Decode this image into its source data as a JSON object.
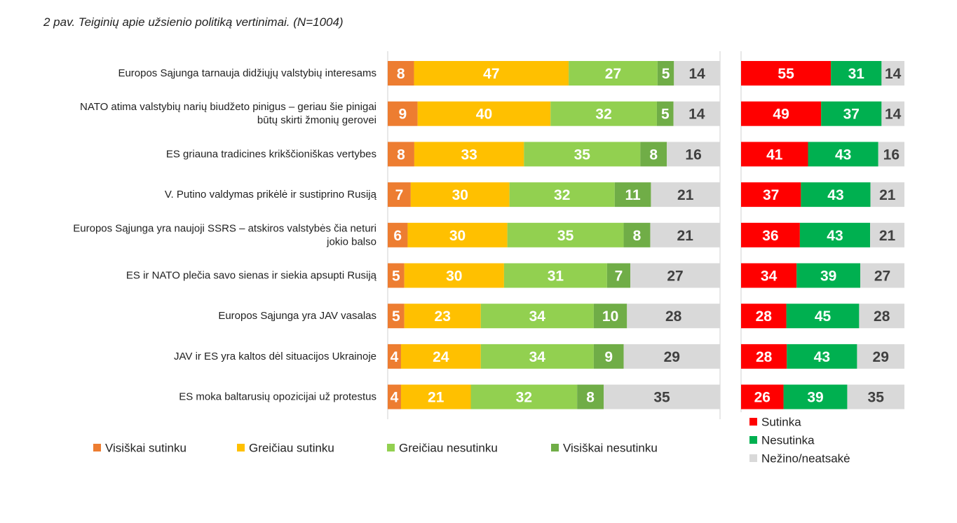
{
  "chart_data": [
    {
      "type": "bar",
      "stacked": true,
      "orientation": "horizontal",
      "title": "2 pav. Teiginių apie užsienio politiką vertinimai. (N=1004)",
      "categories": [
        "Europos Sąjunga tarnauja didžiųjų valstybių interesams",
        "NATO atima valstybių narių biudžeto pinigus – geriau šie pinigai|būtų skirti žmonių gerovei",
        "ES griauna tradicines krikščioniškas vertybes",
        "V. Putino valdymas prikėlė ir sustiprino Rusiją",
        "Europos Sąjunga yra naujoji SSRS – atskiros valstybės čia neturi|jokio balso",
        "ES ir NATO plečia savo sienas ir siekia apsupti Rusiją",
        "Europos Sąjunga yra JAV vasalas",
        "JAV ir ES yra kaltos dėl situacijos Ukrainoje",
        "ES moka baltarusių opozicijai už protestus"
      ],
      "series": [
        {
          "name": "Visiškai sutinku",
          "color": "#ED7D31",
          "values": [
            8,
            9,
            8,
            7,
            6,
            5,
            5,
            4,
            4
          ]
        },
        {
          "name": "Greičiau sutinku",
          "color": "#FFC000",
          "values": [
            47,
            40,
            33,
            30,
            30,
            30,
            23,
            24,
            21
          ]
        },
        {
          "name": "Greičiau nesutinku",
          "color": "#92D050",
          "values": [
            27,
            32,
            35,
            32,
            35,
            31,
            34,
            34,
            32
          ]
        },
        {
          "name": "Visiškai nesutinku",
          "color": "#70AD47",
          "values": [
            5,
            5,
            8,
            11,
            8,
            7,
            10,
            9,
            8
          ]
        },
        {
          "name": "",
          "color": "#D9D9D9",
          "values": [
            14,
            14,
            16,
            21,
            21,
            27,
            28,
            29,
            35
          ]
        }
      ],
      "legend_position": "bottom",
      "grid": false
    },
    {
      "type": "bar",
      "stacked": true,
      "orientation": "horizontal",
      "series": [
        {
          "name": "Sutinka",
          "color": "#FF0000",
          "values": [
            55,
            49,
            41,
            37,
            36,
            34,
            28,
            28,
            26
          ]
        },
        {
          "name": "Nesutinka",
          "color": "#00B050",
          "values": [
            31,
            37,
            43,
            43,
            43,
            39,
            45,
            43,
            39
          ]
        },
        {
          "name": "Nežino/neatsakė",
          "color": "#D9D9D9",
          "values": [
            14,
            14,
            16,
            21,
            21,
            27,
            28,
            29,
            35
          ]
        }
      ],
      "legend_position": "bottom-right",
      "grid": false
    }
  ]
}
